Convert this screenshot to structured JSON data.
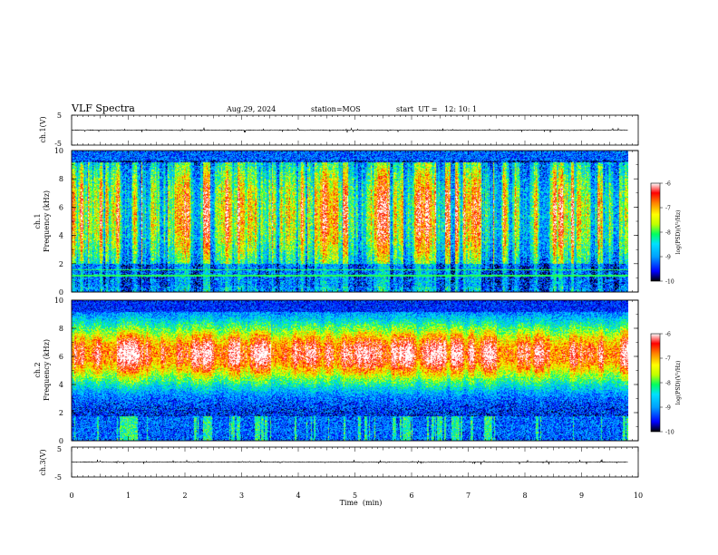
{
  "header": {
    "title": "VLF Spectra",
    "date": "Aug.29, 2024",
    "station": "station=MOS",
    "start": "start  UT =   12: 10: 1"
  },
  "colors": {
    "scale": [
      "#000000",
      "#0000ff",
      "#00a0ff",
      "#00e0ff",
      "#00ff60",
      "#c0ff00",
      "#ffff00",
      "#ff8000",
      "#ff0000",
      "#ffffff"
    ]
  },
  "chart_data": [
    {
      "type": "line",
      "id": "ch1-waveform",
      "ylabel": "ch.1(V)",
      "ylim": [
        -5,
        5
      ],
      "yticks": [
        "5",
        "-5"
      ],
      "baseline": 0
    },
    {
      "type": "heatmap",
      "id": "ch1-spectrogram",
      "ylabel": "ch.1\nFrequency (kHz)",
      "ylim": [
        0,
        10
      ],
      "yticks": [
        "0",
        "2",
        "4",
        "6",
        "8",
        "10"
      ],
      "colorbar": {
        "label": "log(PSD)(V²/Hz)",
        "ticks": [
          "-6",
          "-7",
          "-8",
          "-9",
          "-10"
        ],
        "range": [
          -10,
          -6
        ]
      }
    },
    {
      "type": "heatmap",
      "id": "ch2-spectrogram",
      "ylabel": "ch.2\nFrequency (kHz)",
      "ylim": [
        0,
        10
      ],
      "yticks": [
        "0",
        "2",
        "4",
        "6",
        "8",
        "10"
      ],
      "colorbar": {
        "label": "log(PSD)(V²/Hz)",
        "ticks": [
          "-6",
          "-7",
          "-8",
          "-9",
          "-10"
        ],
        "range": [
          -10,
          -6
        ]
      }
    },
    {
      "type": "line",
      "id": "ch3-waveform",
      "ylabel": "ch.3(V)",
      "ylim": [
        -5,
        5
      ],
      "yticks": [
        "5",
        "-5"
      ],
      "baseline": 0
    }
  ],
  "xaxis": {
    "label": "Time  (min)",
    "xlim": [
      0,
      10
    ],
    "ticks": [
      "0",
      "1",
      "2",
      "3",
      "4",
      "5",
      "6",
      "7",
      "8",
      "9",
      "10"
    ]
  }
}
